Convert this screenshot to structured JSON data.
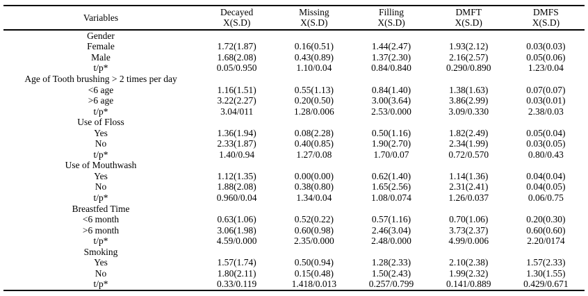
{
  "table": {
    "columns": [
      {
        "label": "Variables",
        "sub": ""
      },
      {
        "label": "Decayed",
        "sub": "X(S.D)"
      },
      {
        "label": "Missing",
        "sub": "X(S.D)"
      },
      {
        "label": "Filling",
        "sub": "X(S.D)"
      },
      {
        "label": "DMFT",
        "sub": "X(S.D)"
      },
      {
        "label": "DMFS",
        "sub": "X(S.D)"
      }
    ],
    "sections": [
      {
        "title": "Gender",
        "rows": [
          {
            "label": "Female",
            "values": [
              "1.72(1.87)",
              "0.16(0.51)",
              "1.44(2.47)",
              "1.93(2.12)",
              "0.03(0.03)"
            ]
          },
          {
            "label": "Male",
            "values": [
              "1.68(2.08)",
              "0.43(0.89)",
              "1.37(2.30)",
              "2.16(2.57)",
              "0.05(0.06)"
            ]
          },
          {
            "label": "t/p*",
            "values": [
              "0.05/0.950",
              "1.10/0.04",
              "0.84/0.840",
              "0.290/0.890",
              "1.23/0.04"
            ]
          }
        ]
      },
      {
        "title": "Age of Tooth brushing > 2 times per day",
        "rows": [
          {
            "label": "<6 age",
            "values": [
              "1.16(1.51)",
              "0.55(1.13)",
              "0.84(1.40)",
              "1.38(1.63)",
              "0.07(0.07)"
            ]
          },
          {
            "label": ">6 age",
            "values": [
              "3.22(2.27)",
              "0.20(0.50)",
              "3.00(3.64)",
              "3.86(2.99)",
              "0.03(0.01)"
            ]
          },
          {
            "label": "t/p*",
            "values": [
              "3.04/011",
              "1.28/0.006",
              "2.53/0.000",
              "3.09/0.330",
              "2.38/0.03"
            ]
          }
        ]
      },
      {
        "title": "Use of Floss",
        "rows": [
          {
            "label": "Yes",
            "values": [
              "1.36(1.94)",
              "0.08(2.28)",
              "0.50(1.16)",
              "1.82(2.49)",
              "0.05(0.04)"
            ]
          },
          {
            "label": "No",
            "values": [
              "2.33(1.87)",
              "0.40(0.85)",
              "1.90(2.70)",
              "2.34(1.99)",
              "0.03(0.05)"
            ]
          },
          {
            "label": "t/p*",
            "values": [
              "1.40/0.94",
              "1.27/0.08",
              "1.70/0.07",
              "0.72/0.570",
              "0.80/0.43"
            ]
          }
        ]
      },
      {
        "title": "Use of Mouthwash",
        "rows": [
          {
            "label": "Yes",
            "values": [
              "1.12(1.35)",
              "0.00(0.00)",
              "0.62(1.40)",
              "1.14(1.36)",
              "0.04(0.04)"
            ]
          },
          {
            "label": "No",
            "values": [
              "1.88(2.08)",
              "0.38(0.80)",
              "1.65(2.56)",
              "2.31(2.41)",
              "0.04(0.05)"
            ]
          },
          {
            "label": "t/p*",
            "values": [
              "0.960/0.04",
              "1.34/0.04",
              "1.08/0.074",
              "1.26/0.037",
              "0.06/0.75"
            ]
          }
        ]
      },
      {
        "title": "Breastfed Time",
        "rows": [
          {
            "label": "<6 month",
            "values": [
              "0.63(1.06)",
              "0.52(0.22)",
              "0.57(1.16)",
              "0.70(1.06)",
              "0.20(0.30)"
            ]
          },
          {
            "label": ">6 month",
            "values": [
              "3.06(1.98)",
              "0.60(0.98)",
              "2.46(3.04)",
              "3.73(2.37)",
              "0.60(0.60)"
            ]
          },
          {
            "label": "t/p*",
            "values": [
              "4.59/0.000",
              "2.35/0.000",
              "2.48/0.000",
              "4.99/0.006",
              "2.20/0174"
            ]
          }
        ]
      },
      {
        "title": "Smoking",
        "rows": [
          {
            "label": "Yes",
            "values": [
              "1.57(1.74)",
              "0.50(0.94)",
              "1.28(2.33)",
              "2.10(2.38)",
              "1.57(2.33)"
            ]
          },
          {
            "label": "No",
            "values": [
              "1.80(2.11)",
              "0.15(0.48)",
              "1.50(2.43)",
              "1.99(2.32)",
              "1.30(1.55)"
            ]
          },
          {
            "label": "t/p*",
            "values": [
              "0.33/0.119",
              "1.418/0.013",
              "0.257/0.799",
              "0.141/0.889",
              "0.429/0.671"
            ]
          }
        ]
      }
    ]
  }
}
